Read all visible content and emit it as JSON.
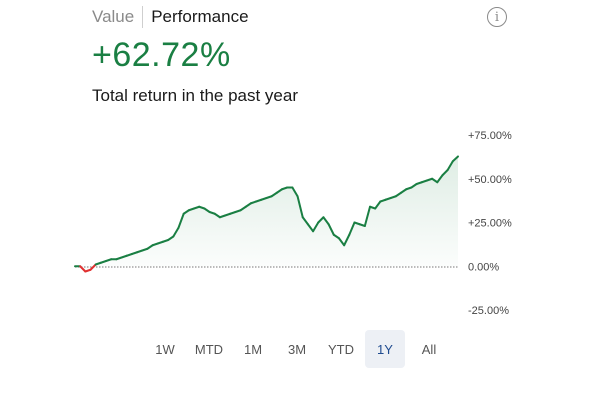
{
  "tabs": [
    {
      "label": "Value",
      "active": false
    },
    {
      "label": "Performance",
      "active": true
    }
  ],
  "info_icon": "info-icon",
  "headline": {
    "value": "+62.72%",
    "subtitle": "Total return in the past year",
    "color": "#1a7f43"
  },
  "chart_data": {
    "type": "line",
    "title": "",
    "xlabel": "",
    "ylabel": "",
    "ylim": [
      -25,
      75
    ],
    "yticks": [
      "+75.00%",
      "+50.00%",
      "+25.00%",
      "0.00%",
      "-25.00%"
    ],
    "ytick_values": [
      75,
      50,
      25,
      0,
      -25
    ],
    "baseline": 0,
    "positive_color": "#1a7f43",
    "negative_color": "#e03030",
    "series": [
      {
        "values": [
          0,
          0,
          -3,
          -2,
          1,
          2,
          3,
          4,
          4,
          5,
          6,
          7,
          8,
          9,
          10,
          12,
          13,
          14,
          15,
          17,
          22,
          30,
          32,
          33,
          34,
          33,
          31,
          30,
          28,
          29,
          30,
          31,
          32,
          34,
          36,
          37,
          38,
          39,
          40,
          42,
          44,
          45,
          45,
          40,
          28,
          24,
          20,
          25,
          28,
          24,
          18,
          16,
          12,
          18,
          25,
          24,
          23,
          34,
          33,
          37,
          38,
          39,
          40,
          42,
          44,
          45,
          47,
          48,
          49,
          50,
          48,
          52,
          55,
          60,
          62.72
        ]
      }
    ]
  },
  "ranges": [
    {
      "label": "1W",
      "selected": false
    },
    {
      "label": "MTD",
      "selected": false
    },
    {
      "label": "1M",
      "selected": false
    },
    {
      "label": "3M",
      "selected": false
    },
    {
      "label": "YTD",
      "selected": false
    },
    {
      "label": "1Y",
      "selected": true
    },
    {
      "label": "All",
      "selected": false
    }
  ]
}
